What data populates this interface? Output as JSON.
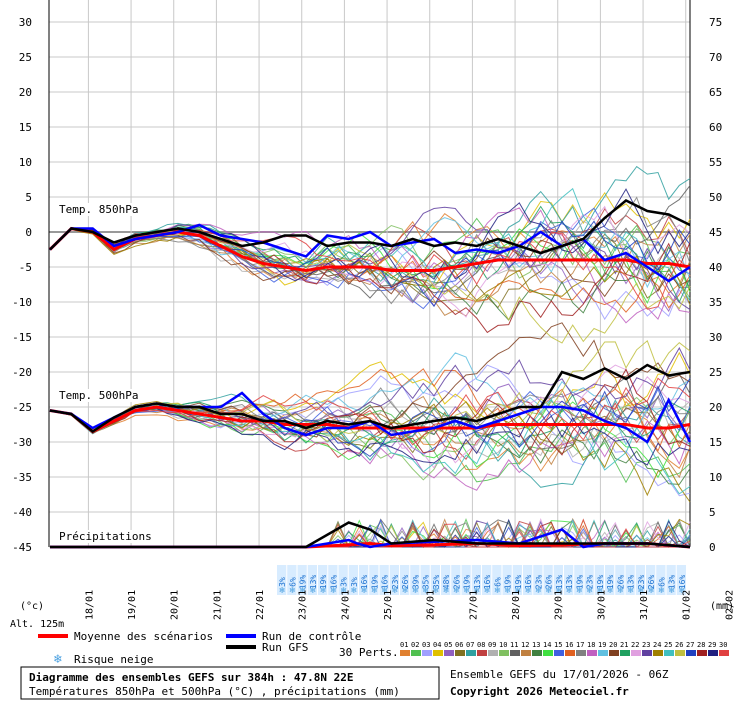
{
  "chart_data": {
    "type": "line",
    "x_dates": [
      "18/01",
      "19/01",
      "20/01",
      "21/01",
      "22/01",
      "23/01",
      "24/01",
      "25/01",
      "26/01",
      "27/01",
      "28/01",
      "29/01",
      "30/01",
      "31/01",
      "01/02",
      "02/02"
    ],
    "left_ticks": [
      30,
      25,
      20,
      15,
      10,
      5,
      0,
      -5,
      -10,
      -15,
      -20,
      -25,
      -30,
      -35,
      -40,
      -45
    ],
    "right_ticks": [
      75,
      70,
      65,
      60,
      55,
      50,
      45,
      40,
      35,
      30,
      25,
      20,
      15,
      10,
      5,
      0
    ],
    "left_unit": "(°c)",
    "right_unit": "(mm)",
    "altitude": "Alt. 125m",
    "labels": {
      "t850": "Temp. 850hPa",
      "t500": "Temp. 500hPa",
      "precip": "Précipitations"
    },
    "snow_risk": [
      "3%",
      "6%",
      "19%",
      "13%",
      "19%",
      "16%",
      "3%",
      "3%",
      "16%",
      "19%",
      "16%",
      "23%",
      "26%",
      "39%",
      "35%",
      "35%",
      "48%",
      "26%",
      "19%",
      "13%",
      "16%",
      "6%",
      "19%",
      "19%",
      "16%",
      "23%",
      "26%",
      "13%",
      "13%",
      "19%",
      "23%",
      "19%",
      "19%",
      "26%",
      "13%",
      "23%",
      "26%",
      "6%",
      "13%",
      "16%"
    ],
    "series": [
      {
        "name": "Moyenne des scénarios",
        "color": "#ff0000",
        "t850": [
          [
            0,
            -2.5
          ],
          [
            0.5,
            0.5
          ],
          [
            1,
            0
          ],
          [
            1.5,
            -2.5
          ],
          [
            2,
            -1
          ],
          [
            2.5,
            -0.5
          ],
          [
            3,
            0
          ],
          [
            3.5,
            -0.5
          ],
          [
            4,
            -2
          ],
          [
            4.5,
            -3.5
          ],
          [
            5,
            -4.5
          ],
          [
            5.5,
            -5
          ],
          [
            6,
            -5.5
          ],
          [
            6.5,
            -5
          ],
          [
            7,
            -5
          ],
          [
            7.5,
            -5
          ],
          [
            8,
            -5.5
          ],
          [
            8.5,
            -5.5
          ],
          [
            9,
            -5.5
          ],
          [
            9.5,
            -5
          ],
          [
            10,
            -4.5
          ],
          [
            10.5,
            -4
          ],
          [
            11,
            -4
          ],
          [
            11.5,
            -4
          ],
          [
            12,
            -4
          ],
          [
            12.5,
            -4
          ],
          [
            13,
            -4
          ],
          [
            13.5,
            -4
          ],
          [
            14,
            -4.5
          ],
          [
            14.5,
            -4.5
          ],
          [
            15,
            -5
          ]
        ],
        "t500": [
          [
            0,
            -25.5
          ],
          [
            0.5,
            -26
          ],
          [
            1,
            -28.5
          ],
          [
            1.5,
            -27
          ],
          [
            2,
            -25.5
          ],
          [
            2.5,
            -25
          ],
          [
            3,
            -25.5
          ],
          [
            3.5,
            -26
          ],
          [
            4,
            -26.5
          ],
          [
            4.5,
            -27
          ],
          [
            5,
            -27
          ],
          [
            5.5,
            -27.5
          ],
          [
            6,
            -27.5
          ],
          [
            6.5,
            -27.5
          ],
          [
            7,
            -28
          ],
          [
            7.5,
            -28
          ],
          [
            8,
            -28
          ],
          [
            8.5,
            -28
          ],
          [
            9,
            -28
          ],
          [
            9.5,
            -28
          ],
          [
            10,
            -28
          ],
          [
            10.5,
            -27.5
          ],
          [
            11,
            -27.5
          ],
          [
            11.5,
            -27.5
          ],
          [
            12,
            -27.5
          ],
          [
            12.5,
            -27.5
          ],
          [
            13,
            -27.5
          ],
          [
            13.5,
            -27.5
          ],
          [
            14,
            -28
          ],
          [
            14.5,
            -28
          ],
          [
            15,
            -27.5
          ]
        ],
        "precip": [
          [
            0,
            0
          ],
          [
            6,
            0
          ],
          [
            7,
            0.3
          ],
          [
            7.5,
            0.5
          ],
          [
            8,
            0.2
          ],
          [
            9,
            0.3
          ],
          [
            10,
            0.5
          ],
          [
            11,
            0.2
          ],
          [
            12,
            0.3
          ],
          [
            13,
            0.5
          ],
          [
            14,
            0.5
          ],
          [
            15,
            0
          ]
        ]
      },
      {
        "name": "Run de contrôle",
        "color": "#0000ff",
        "t850": [
          [
            0,
            -2.5
          ],
          [
            0.5,
            0.5
          ],
          [
            1,
            0.5
          ],
          [
            1.5,
            -2
          ],
          [
            2,
            -1
          ],
          [
            2.5,
            -0.5
          ],
          [
            3,
            0
          ],
          [
            3.5,
            1
          ],
          [
            4,
            -0.5
          ],
          [
            4.5,
            -1
          ],
          [
            5,
            -1.5
          ],
          [
            5.5,
            -2.5
          ],
          [
            6,
            -3.5
          ],
          [
            6.5,
            -0.5
          ],
          [
            7,
            -1
          ],
          [
            7.5,
            0
          ],
          [
            8,
            -2
          ],
          [
            8.5,
            -1.5
          ],
          [
            9,
            -1
          ],
          [
            9.5,
            -3
          ],
          [
            10,
            -2.5
          ],
          [
            10.5,
            -3
          ],
          [
            11,
            -2
          ],
          [
            11.5,
            0
          ],
          [
            12,
            -2
          ],
          [
            12.5,
            -1
          ],
          [
            13,
            -4
          ],
          [
            13.5,
            -3
          ],
          [
            14,
            -5
          ],
          [
            14.5,
            -7
          ],
          [
            15,
            -5
          ]
        ],
        "t500": [
          [
            0,
            -25.5
          ],
          [
            0.5,
            -26
          ],
          [
            1,
            -28
          ],
          [
            1.5,
            -26.5
          ],
          [
            2,
            -25
          ],
          [
            2.5,
            -24.5
          ],
          [
            3,
            -25
          ],
          [
            3.5,
            -25
          ],
          [
            4,
            -25
          ],
          [
            4.5,
            -23
          ],
          [
            5,
            -26
          ],
          [
            5.5,
            -28
          ],
          [
            6,
            -29
          ],
          [
            6.5,
            -28
          ],
          [
            7,
            -28
          ],
          [
            7.5,
            -27
          ],
          [
            8,
            -29
          ],
          [
            8.5,
            -28.5
          ],
          [
            9,
            -28
          ],
          [
            9.5,
            -27
          ],
          [
            10,
            -28
          ],
          [
            10.5,
            -27
          ],
          [
            11,
            -26
          ],
          [
            11.5,
            -25
          ],
          [
            12,
            -25
          ],
          [
            12.5,
            -25.5
          ],
          [
            13,
            -27
          ],
          [
            13.5,
            -28
          ],
          [
            14,
            -30
          ],
          [
            14.5,
            -24
          ],
          [
            15,
            -30
          ]
        ],
        "precip": [
          [
            0,
            0
          ],
          [
            6,
            0
          ],
          [
            7,
            1
          ],
          [
            7.2,
            0.5
          ],
          [
            7.5,
            0
          ],
          [
            8,
            0.5
          ],
          [
            10,
            1
          ],
          [
            11,
            0.5
          ],
          [
            12,
            2.5
          ],
          [
            12.5,
            0
          ],
          [
            13,
            0.5
          ],
          [
            14,
            0.5
          ],
          [
            15,
            0
          ]
        ]
      },
      {
        "name": "Run GFS",
        "color": "#000000",
        "t850": [
          [
            0,
            -2.5
          ],
          [
            0.5,
            0.5
          ],
          [
            1,
            0
          ],
          [
            1.5,
            -1.5
          ],
          [
            2,
            -0.5
          ],
          [
            2.5,
            0
          ],
          [
            3,
            0.5
          ],
          [
            3.5,
            0
          ],
          [
            4,
            -1
          ],
          [
            4.5,
            -2
          ],
          [
            5,
            -1.5
          ],
          [
            5.5,
            -0.5
          ],
          [
            6,
            -0.5
          ],
          [
            6.5,
            -2
          ],
          [
            7,
            -1.5
          ],
          [
            7.5,
            -1.5
          ],
          [
            8,
            -2
          ],
          [
            8.5,
            -1
          ],
          [
            9,
            -2
          ],
          [
            9.5,
            -1.5
          ],
          [
            10,
            -2
          ],
          [
            10.5,
            -1
          ],
          [
            11,
            -2
          ],
          [
            11.5,
            -3
          ],
          [
            12,
            -2
          ],
          [
            12.5,
            -1
          ],
          [
            13,
            2
          ],
          [
            13.5,
            4.5
          ],
          [
            14,
            3
          ],
          [
            14.5,
            2.5
          ],
          [
            15,
            1
          ]
        ],
        "t500": [
          [
            0,
            -25.5
          ],
          [
            0.5,
            -26
          ],
          [
            1,
            -28.5
          ],
          [
            1.5,
            -26.5
          ],
          [
            2,
            -25
          ],
          [
            2.5,
            -24.5
          ],
          [
            3,
            -25
          ],
          [
            3.5,
            -25
          ],
          [
            4,
            -26
          ],
          [
            4.5,
            -26
          ],
          [
            5,
            -27
          ],
          [
            5.5,
            -27
          ],
          [
            6,
            -28
          ],
          [
            6.5,
            -27
          ],
          [
            7,
            -27.5
          ],
          [
            7.5,
            -27
          ],
          [
            8,
            -28
          ],
          [
            8.5,
            -27.5
          ],
          [
            9,
            -27
          ],
          [
            9.5,
            -26.5
          ],
          [
            10,
            -27
          ],
          [
            10.5,
            -26
          ],
          [
            11,
            -25
          ],
          [
            11.5,
            -25
          ],
          [
            12,
            -20
          ],
          [
            12.5,
            -21
          ],
          [
            13,
            -19.5
          ],
          [
            13.5,
            -21
          ],
          [
            14,
            -19
          ],
          [
            14.5,
            -20.5
          ],
          [
            15,
            -20
          ]
        ],
        "precip": [
          [
            0,
            0
          ],
          [
            6,
            0
          ],
          [
            7,
            3.5
          ],
          [
            7.5,
            2.5
          ],
          [
            8,
            0.5
          ],
          [
            9,
            1
          ],
          [
            10,
            0.5
          ],
          [
            11,
            0.5
          ],
          [
            12,
            0.5
          ],
          [
            13,
            0.5
          ],
          [
            14,
            0.5
          ],
          [
            15,
            0
          ]
        ]
      }
    ]
  },
  "legend": {
    "mean_label": "Moyenne des scénarios",
    "control_label": "Run de contrôle",
    "gfs_label": "Run GFS",
    "snow_label": "Risque neige",
    "perts_label": "30 Perts.",
    "perts_numbers": [
      "01",
      "02",
      "03",
      "04",
      "05",
      "06",
      "07",
      "08",
      "09",
      "10",
      "11",
      "12",
      "13",
      "14",
      "15",
      "16",
      "17",
      "18",
      "19",
      "20",
      "21",
      "22",
      "23",
      "24",
      "25",
      "26",
      "27",
      "28",
      "29",
      "30"
    ],
    "perts_colors": [
      "#e08030",
      "#50c050",
      "#a0a0ff",
      "#e0c000",
      "#9060c0",
      "#807020",
      "#30a0a0",
      "#c04040",
      "#b0b0b0",
      "#80c060",
      "#606060",
      "#c08040",
      "#408040",
      "#40e040",
      "#4060e0",
      "#e06020",
      "#808080",
      "#c060c0",
      "#60c0e0",
      "#804020",
      "#20a060",
      "#e0a0e0",
      "#6040a0",
      "#a08000",
      "#40c0c0",
      "#c0c040",
      "#2040c0",
      "#a02020",
      "#202080",
      "#e04040"
    ]
  },
  "footer": {
    "title_line1": "Diagramme des ensembles GEFS sur 384h : 47.8N 22E",
    "title_line2": "Températures 850hPa et 500hPa (°C) , précipitations (mm)",
    "ensemble_info": "Ensemble GEFS du 17/01/2026 - 06Z",
    "copyright": "Copyright 2026 Meteociel.fr"
  }
}
